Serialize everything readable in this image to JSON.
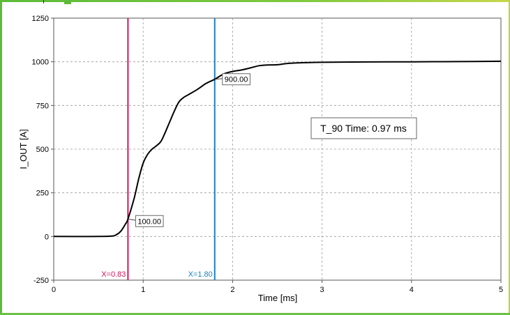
{
  "chart_data": {
    "type": "line",
    "xlabel": "Time [ms]",
    "ylabel": "I_OUT [A]",
    "xlim": [
      0,
      5
    ],
    "ylim": [
      -250,
      1250
    ],
    "xticks": [
      0,
      1,
      2,
      3,
      4,
      5
    ],
    "xtick_labels": [
      "0",
      "1",
      "2",
      "3",
      "4",
      "5"
    ],
    "yticks": [
      -250,
      0,
      250,
      500,
      750,
      1000,
      1250
    ],
    "ytick_labels": [
      "-250",
      "0",
      "250",
      "500",
      "750",
      "1000",
      "1250"
    ],
    "grid": true,
    "series": [
      {
        "color": "#000000",
        "x": [
          0,
          0.5,
          0.65,
          0.7,
          0.75,
          0.8,
          0.83,
          0.9,
          0.95,
          1.0,
          1.05,
          1.1,
          1.15,
          1.2,
          1.25,
          1.3,
          1.35,
          1.4,
          1.45,
          1.5,
          1.6,
          1.7,
          1.8,
          1.9,
          2.0,
          2.1,
          2.2,
          2.3,
          2.4,
          2.5,
          2.6,
          2.7,
          2.8,
          3.0,
          3.5,
          4.0,
          4.5,
          5.0
        ],
        "y": [
          0,
          0,
          2,
          10,
          30,
          70,
          100,
          220,
          330,
          420,
          470,
          500,
          520,
          545,
          600,
          660,
          720,
          770,
          795,
          810,
          840,
          875,
          900,
          930,
          945,
          953,
          965,
          978,
          982,
          983,
          990,
          993,
          995,
          997,
          999,
          1000,
          1001,
          1003
        ]
      }
    ],
    "cursors": [
      {
        "x": 0.83,
        "label": "X=0.83",
        "color": "#d4145a",
        "value_label": "100.00",
        "value": 100
      },
      {
        "x": 1.8,
        "label": "X=1.80",
        "color": "#1a7fc1",
        "value_label": "900.00",
        "value": 900
      }
    ],
    "annotation": "T_90 Time: 0.97 ms"
  }
}
